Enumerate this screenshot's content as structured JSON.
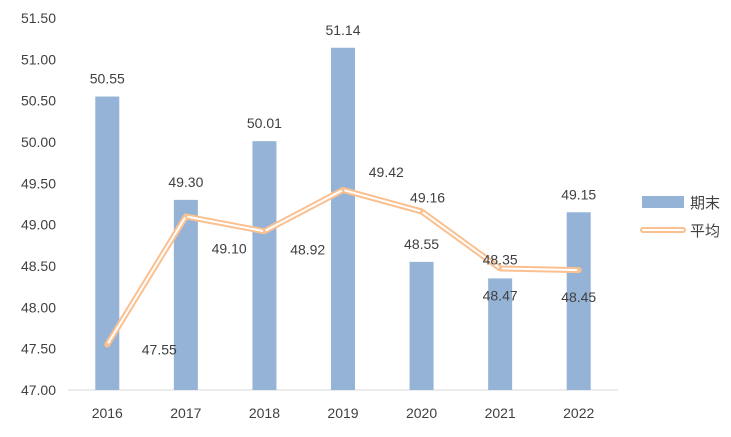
{
  "chart_data": {
    "type": "bar+line",
    "categories": [
      "2016",
      "2017",
      "2018",
      "2019",
      "2020",
      "2021",
      "2022"
    ],
    "series": [
      {
        "name": "期末",
        "type": "bar",
        "color": "#95B3D7",
        "values": [
          50.55,
          49.3,
          50.01,
          51.14,
          48.55,
          48.35,
          49.15
        ],
        "labels": [
          "50.55",
          "49.30",
          "50.01",
          "51.14",
          "48.55",
          "48.35",
          "49.15"
        ]
      },
      {
        "name": "平均",
        "type": "line",
        "color": "#FAC090",
        "values": [
          47.55,
          49.1,
          48.92,
          49.42,
          49.16,
          48.47,
          48.45
        ],
        "labels": [
          "47.55",
          "49.10",
          "48.92",
          "49.42",
          "49.16",
          "48.47",
          "48.45"
        ]
      }
    ],
    "y_ticks": [
      "47.00",
      "47.50",
      "48.00",
      "48.50",
      "49.00",
      "49.50",
      "50.00",
      "50.50",
      "51.00",
      "51.50"
    ],
    "ylim": [
      47.0,
      51.5
    ],
    "legend_position": "right",
    "title": "",
    "xlabel": "",
    "ylabel": ""
  }
}
